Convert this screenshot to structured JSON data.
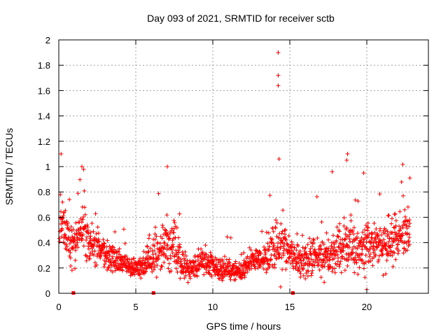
{
  "chart_data": {
    "type": "scatter",
    "title": "Day 093 of 2021, SRMTID for receiver sctb",
    "xlabel": "GPS time / hours",
    "ylabel": "SRMTID / TECUs",
    "xlim": [
      0,
      24
    ],
    "ylim": [
      0,
      2
    ],
    "xticks": [
      0,
      5,
      10,
      15,
      20
    ],
    "xtick_labels": [
      "0",
      "5",
      "10",
      "15",
      "20"
    ],
    "yticks": [
      0,
      0.2,
      0.4,
      0.6,
      0.8,
      1,
      1.2,
      1.4,
      1.6,
      1.8,
      2
    ],
    "ytick_labels": [
      "0",
      "0.2",
      "0.4",
      "0.6",
      "0.8",
      "1",
      "1.2",
      "1.4",
      "1.6",
      "1.8",
      "2"
    ],
    "grid": true,
    "marker": "+",
    "color": "#ff0000",
    "baseline_markers_x": [
      0.95,
      6.15,
      15.2
    ],
    "envelope": {
      "note": "Dense scatter of SRMTID values (thousands of points); approximate median and spread per hour",
      "hours": [
        0.0,
        0.5,
        1.0,
        1.5,
        2.0,
        2.5,
        3.0,
        3.5,
        4.0,
        4.5,
        5.0,
        5.5,
        6.0,
        6.5,
        7.0,
        7.5,
        8.0,
        8.5,
        9.0,
        9.5,
        10.0,
        10.5,
        11.0,
        11.5,
        12.0,
        12.5,
        13.0,
        13.5,
        14.0,
        14.5,
        15.0,
        15.5,
        16.0,
        16.5,
        17.0,
        17.5,
        18.0,
        18.5,
        19.0,
        19.5,
        20.0,
        20.5,
        21.0,
        21.5,
        22.0,
        22.5,
        22.8
      ],
      "median": [
        0.62,
        0.45,
        0.36,
        0.52,
        0.38,
        0.34,
        0.3,
        0.28,
        0.24,
        0.22,
        0.2,
        0.22,
        0.28,
        0.34,
        0.38,
        0.42,
        0.22,
        0.18,
        0.22,
        0.26,
        0.2,
        0.2,
        0.19,
        0.17,
        0.16,
        0.26,
        0.28,
        0.3,
        0.38,
        0.4,
        0.3,
        0.26,
        0.26,
        0.28,
        0.3,
        0.3,
        0.32,
        0.4,
        0.34,
        0.32,
        0.36,
        0.34,
        0.38,
        0.4,
        0.42,
        0.46,
        0.5
      ],
      "spread": [
        0.22,
        0.14,
        0.14,
        0.2,
        0.14,
        0.12,
        0.11,
        0.1,
        0.08,
        0.07,
        0.07,
        0.09,
        0.12,
        0.13,
        0.18,
        0.18,
        0.09,
        0.08,
        0.1,
        0.09,
        0.08,
        0.08,
        0.07,
        0.06,
        0.06,
        0.09,
        0.1,
        0.12,
        0.18,
        0.16,
        0.12,
        0.11,
        0.11,
        0.12,
        0.13,
        0.13,
        0.14,
        0.2,
        0.15,
        0.14,
        0.17,
        0.15,
        0.16,
        0.16,
        0.17,
        0.18,
        0.18
      ]
    },
    "notable_points": [
      {
        "x": 14.25,
        "y": 1.9
      },
      {
        "x": 14.25,
        "y": 1.72
      },
      {
        "x": 14.25,
        "y": 1.64
      },
      {
        "x": 0.15,
        "y": 1.1
      },
      {
        "x": 18.75,
        "y": 1.1
      },
      {
        "x": 18.7,
        "y": 1.05
      },
      {
        "x": 14.3,
        "y": 1.06
      },
      {
        "x": 7.05,
        "y": 1.0
      },
      {
        "x": 1.5,
        "y": 1.0
      },
      {
        "x": 17.75,
        "y": 0.96
      },
      {
        "x": 19.8,
        "y": 0.95
      },
      {
        "x": 22.8,
        "y": 0.91
      },
      {
        "x": 14.4,
        "y": 0.05
      },
      {
        "x": 20.0,
        "y": 0.03
      }
    ]
  }
}
